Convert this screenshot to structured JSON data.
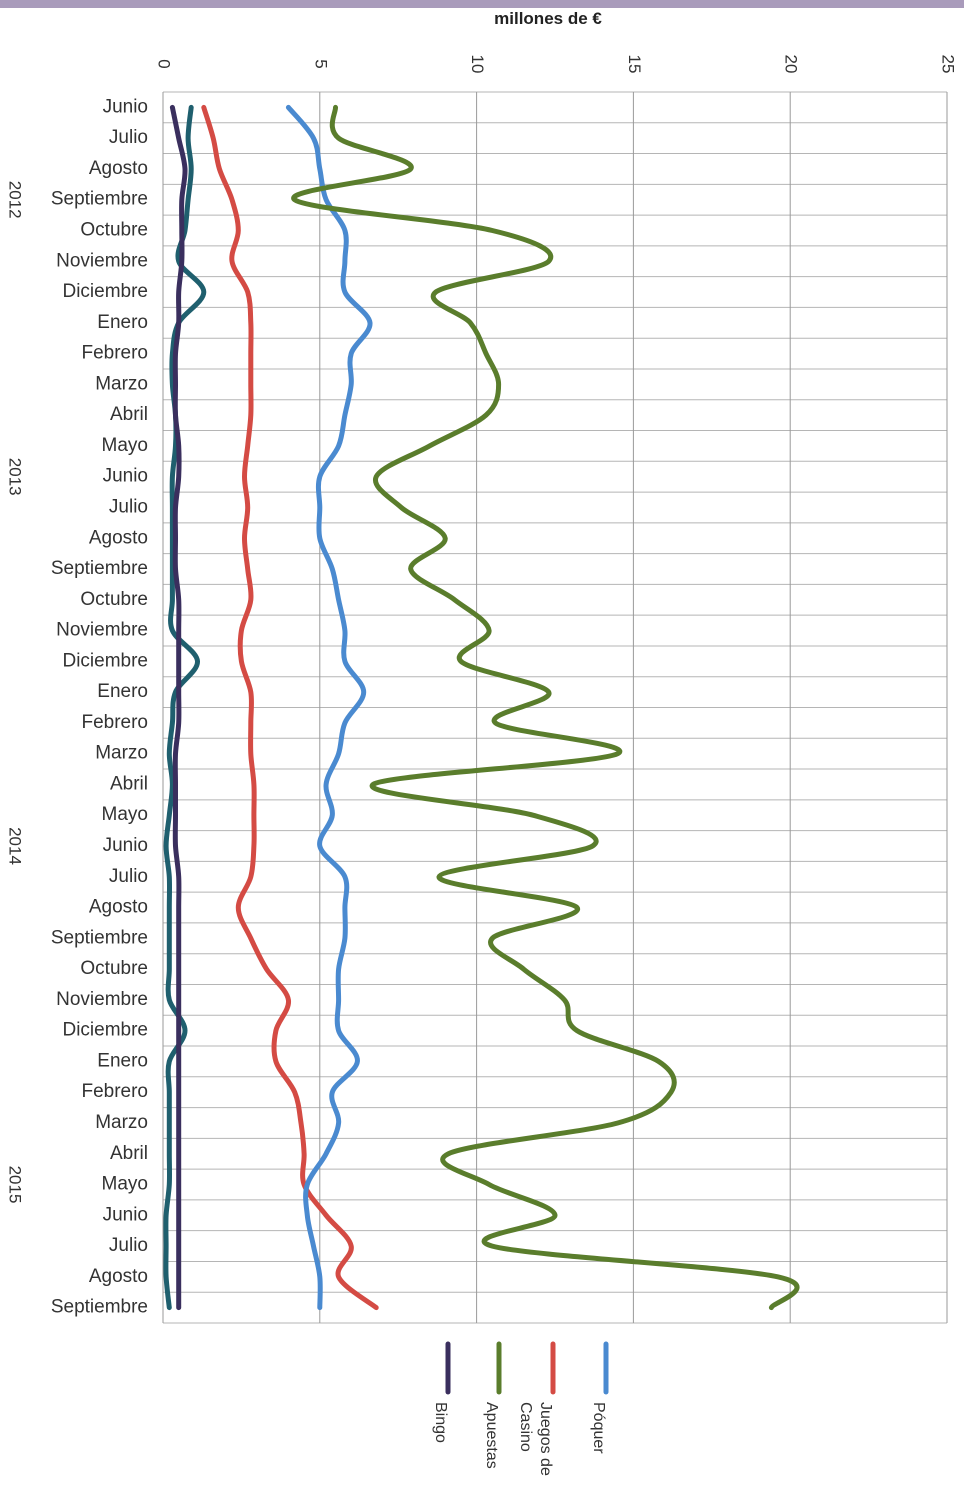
{
  "chart_data": {
    "type": "line",
    "orientation": "vertical",
    "unit_label": "millones de €",
    "xlim": [
      0,
      25
    ],
    "x_ticks": [
      "0",
      "5",
      "10",
      "15",
      "20",
      "25"
    ],
    "grid": true,
    "legend_position": "bottom",
    "month_labels": [
      "Junio",
      "Julio",
      "Agosto",
      "Septiembre",
      "Octubre",
      "Noviembre",
      "Diciembre",
      "Enero",
      "Febrero",
      "Marzo",
      "Abril",
      "Mayo",
      "Junio",
      "Julio",
      "Agosto",
      "Septiembre",
      "Octubre",
      "Noviembre",
      "Diciembre",
      "Enero",
      "Febrero",
      "Marzo",
      "Abril",
      "Mayo",
      "Junio",
      "Julio",
      "Agosto",
      "Septiembre",
      "Octubre",
      "Noviembre",
      "Diciembre",
      "Enero",
      "Febrero",
      "Marzo",
      "Abril",
      "Mayo",
      "Junio",
      "Julio",
      "Agosto",
      "Septiembre"
    ],
    "year_labels": [
      {
        "label": "2012",
        "month_index": 3
      },
      {
        "label": "2013",
        "month_index": 12
      },
      {
        "label": "2014",
        "month_index": 24
      },
      {
        "label": "2015",
        "month_index": 35
      }
    ],
    "series": [
      {
        "name": "Póquer",
        "color": "#4a8ad0",
        "values": [
          4.0,
          4.8,
          5.0,
          5.2,
          5.8,
          5.8,
          5.8,
          6.6,
          6.0,
          6.0,
          5.8,
          5.6,
          5.0,
          5.0,
          5.0,
          5.4,
          5.6,
          5.8,
          5.8,
          6.4,
          5.8,
          5.6,
          5.2,
          5.4,
          5.0,
          5.8,
          5.8,
          5.8,
          5.6,
          5.6,
          5.6,
          6.2,
          5.4,
          5.6,
          5.2,
          4.6,
          4.6,
          4.8,
          5.0,
          5.0
        ]
      },
      {
        "name": "Juegos de Casino",
        "color": "#d44b44",
        "values": [
          1.3,
          1.6,
          1.8,
          2.2,
          2.4,
          2.2,
          2.7,
          2.8,
          2.8,
          2.8,
          2.8,
          2.7,
          2.6,
          2.7,
          2.6,
          2.7,
          2.8,
          2.5,
          2.5,
          2.8,
          2.8,
          2.8,
          2.9,
          2.9,
          2.9,
          2.8,
          2.4,
          2.8,
          3.3,
          4.0,
          3.6,
          3.6,
          4.2,
          4.4,
          4.5,
          4.5,
          5.2,
          6.0,
          5.6,
          6.8
        ]
      },
      {
        "name": "Apuestas",
        "color": "#5a7d2c",
        "values": [
          5.5,
          5.6,
          7.9,
          4.2,
          10.5,
          12.3,
          8.7,
          9.8,
          10.3,
          10.7,
          10.3,
          8.5,
          6.8,
          7.6,
          9.0,
          7.9,
          9.3,
          10.4,
          9.5,
          12.3,
          10.6,
          14.5,
          6.7,
          11.8,
          13.7,
          8.8,
          13.2,
          10.5,
          11.5,
          12.8,
          13.2,
          15.8,
          16.2,
          14.5,
          9.1,
          10.4,
          12.5,
          10.5,
          19.6,
          19.4
        ]
      },
      {
        "name": "Bingo",
        "color": "#3a2f5e",
        "values": [
          0.3,
          0.5,
          0.7,
          0.6,
          0.6,
          0.6,
          0.5,
          0.5,
          0.4,
          0.4,
          0.4,
          0.5,
          0.5,
          0.4,
          0.4,
          0.4,
          0.5,
          0.5,
          0.5,
          0.5,
          0.5,
          0.4,
          0.4,
          0.4,
          0.4,
          0.5,
          0.5,
          0.5,
          0.5,
          0.5,
          0.5,
          0.5,
          0.5,
          0.5,
          0.5,
          0.5,
          0.5,
          0.5,
          0.5,
          0.5
        ]
      },
      {
        "name": "",
        "color": "#1f5f6e",
        "values": [
          0.9,
          0.8,
          0.9,
          0.8,
          0.7,
          0.5,
          1.3,
          0.5,
          0.3,
          0.3,
          0.4,
          0.4,
          0.3,
          0.3,
          0.3,
          0.3,
          0.3,
          0.3,
          1.1,
          0.4,
          0.3,
          0.2,
          0.3,
          0.2,
          0.1,
          0.2,
          0.2,
          0.2,
          0.2,
          0.2,
          0.7,
          0.2,
          0.2,
          0.2,
          0.2,
          0.2,
          0.1,
          0.1,
          0.1,
          0.2
        ]
      }
    ],
    "legend": [
      {
        "label": "Póquer",
        "color": "#4a8ad0"
      },
      {
        "label": "Juegos de Casino",
        "color": "#d44b44"
      },
      {
        "label": "Apuestas",
        "color": "#5a7d2c"
      },
      {
        "label": "Bingo",
        "color": "#3a2f5e"
      }
    ]
  }
}
